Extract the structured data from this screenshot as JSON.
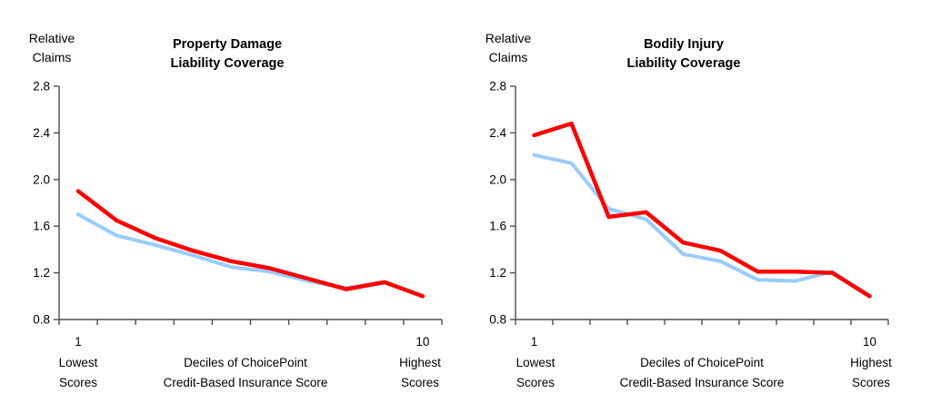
{
  "figure": {
    "background": "#FFFFFF",
    "text_color": "#000000",
    "axis_color": "#4d4d4d"
  },
  "chart_data": [
    {
      "type": "line",
      "title_lines": [
        "Property Damage",
        "Liability Coverage"
      ],
      "ylabel_lines": [
        "Relative",
        "Claims"
      ],
      "categories": [
        1,
        2,
        3,
        4,
        5,
        6,
        7,
        8,
        9,
        10
      ],
      "x_first_tick_label": "1",
      "x_last_tick_label": "10",
      "ytick_labels": [
        "2.8",
        "2.4",
        "2.0",
        "1.6",
        "1.2",
        "0.8"
      ],
      "ylim": [
        0.8,
        2.8
      ],
      "grid": false,
      "legend": "none",
      "series": [
        {
          "name": "blue-series",
          "color": "#99CCFF",
          "stroke_width": 4,
          "values": [
            1.7,
            1.52,
            1.44,
            1.35,
            1.25,
            1.21,
            1.13,
            1.07,
            1.12,
            1.0
          ]
        },
        {
          "name": "red-series",
          "color": "#FF0000",
          "stroke_width": 4.5,
          "values": [
            1.9,
            1.65,
            1.5,
            1.39,
            1.3,
            1.24,
            1.15,
            1.06,
            1.12,
            1.0
          ]
        }
      ],
      "x_axis_labels": {
        "left_lines": [
          "Lowest",
          "Scores"
        ],
        "center_lines": [
          "Deciles of ChoicePoint",
          "Credit-Based Insurance Score"
        ],
        "right_lines": [
          "Highest",
          "Scores"
        ]
      }
    },
    {
      "type": "line",
      "title_lines": [
        "Bodily Injury",
        "Liability Coverage"
      ],
      "ylabel_lines": [
        "Relative",
        "Claims"
      ],
      "categories": [
        1,
        2,
        3,
        4,
        5,
        6,
        7,
        8,
        9,
        10
      ],
      "x_first_tick_label": "1",
      "x_last_tick_label": "10",
      "ytick_labels": [
        "2.8",
        "2.4",
        "2.0",
        "1.6",
        "1.2",
        "0.8"
      ],
      "ylim": [
        0.8,
        2.8
      ],
      "grid": false,
      "legend": "none",
      "series": [
        {
          "name": "blue-series",
          "color": "#99CCFF",
          "stroke_width": 4,
          "values": [
            2.21,
            2.14,
            1.75,
            1.66,
            1.36,
            1.3,
            1.14,
            1.13,
            1.21,
            1.0
          ]
        },
        {
          "name": "red-series",
          "color": "#FF0000",
          "stroke_width": 4.5,
          "values": [
            2.38,
            2.48,
            1.68,
            1.72,
            1.46,
            1.39,
            1.21,
            1.21,
            1.2,
            1.0
          ]
        }
      ],
      "x_axis_labels": {
        "left_lines": [
          "Lowest",
          "Scores"
        ],
        "center_lines": [
          "Deciles of ChoicePoint",
          "Credit-Based Insurance Score"
        ],
        "right_lines": [
          "Highest",
          "Scores"
        ]
      }
    }
  ]
}
